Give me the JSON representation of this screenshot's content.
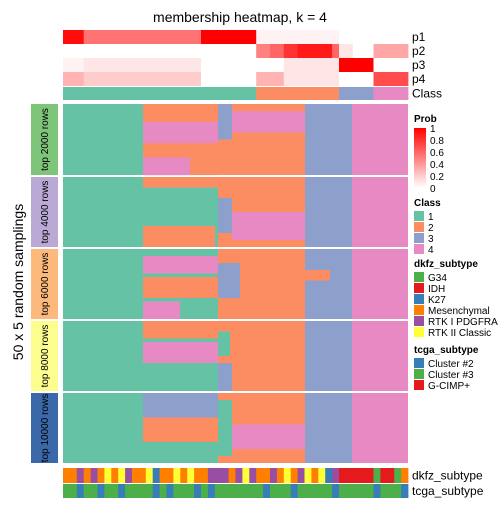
{
  "chart_data": {
    "type": "heatmap",
    "title": "membership heatmap, k = 4",
    "ylabel": "50 x 5 random samplings",
    "n_columns": 50,
    "top_tracks": [
      {
        "label": "p1",
        "values": [
          0.95,
          0.95,
          0.95,
          0.55,
          0.55,
          0.55,
          0.55,
          0.55,
          0.55,
          0.55,
          0.55,
          0.55,
          0.55,
          0.55,
          0.55,
          0.55,
          0.55,
          0.55,
          0.55,
          0.55,
          1.0,
          1.0,
          1.0,
          1.0,
          1.0,
          1.0,
          1.0,
          1.0,
          0.05,
          0.05,
          0.05,
          0.05,
          0.05,
          0.05,
          0.05,
          0.05,
          0.05,
          0.05,
          0.05,
          0.05,
          0,
          0,
          0,
          0,
          0,
          0,
          0,
          0,
          0,
          0
        ]
      },
      {
        "label": "p2",
        "values": [
          0,
          0,
          0,
          0,
          0,
          0,
          0,
          0,
          0,
          0,
          0,
          0,
          0,
          0,
          0,
          0,
          0,
          0,
          0,
          0,
          0,
          0,
          0,
          0,
          0,
          0,
          0,
          0,
          0.5,
          0.5,
          0.6,
          0.6,
          0.8,
          0.8,
          0.9,
          0.9,
          0.9,
          0.9,
          0.9,
          0.6,
          0.1,
          0.1,
          0,
          0,
          0,
          0.35,
          0.35,
          0.35,
          0.35,
          0.35
        ]
      },
      {
        "label": "p3",
        "values": [
          0.05,
          0.05,
          0.05,
          0.1,
          0.1,
          0.1,
          0.1,
          0.1,
          0.1,
          0.1,
          0.1,
          0.1,
          0.1,
          0.1,
          0.1,
          0.1,
          0.1,
          0.1,
          0.1,
          0.1,
          0,
          0,
          0,
          0,
          0,
          0,
          0,
          0,
          0,
          0,
          0,
          0,
          0.1,
          0.1,
          0.1,
          0.1,
          0.1,
          0.1,
          0.1,
          0.1,
          1.0,
          1.0,
          1.0,
          1.0,
          1.0,
          0,
          0,
          0,
          0,
          0
        ]
      },
      {
        "label": "p4",
        "values": [
          0.3,
          0.3,
          0.3,
          0.2,
          0.2,
          0.2,
          0.2,
          0.2,
          0.2,
          0.2,
          0.2,
          0.2,
          0.2,
          0.2,
          0.2,
          0.2,
          0.2,
          0.2,
          0.2,
          0.2,
          0,
          0,
          0,
          0,
          0,
          0,
          0,
          0,
          0.3,
          0.3,
          0.3,
          0.3,
          0.1,
          0.1,
          0.1,
          0.1,
          0.1,
          0.1,
          0.1,
          0.1,
          0,
          0,
          0,
          0,
          0,
          0.7,
          0.7,
          0.7,
          0.7,
          0.7
        ]
      },
      {
        "label": "Class",
        "values": [
          1,
          1,
          1,
          1,
          1,
          1,
          1,
          1,
          1,
          1,
          1,
          1,
          1,
          1,
          1,
          1,
          1,
          1,
          1,
          1,
          1,
          1,
          1,
          1,
          1,
          1,
          1,
          1,
          2,
          2,
          2,
          2,
          2,
          2,
          2,
          2,
          2,
          2,
          2,
          2,
          3,
          3,
          3,
          3,
          3,
          4,
          4,
          4,
          4,
          4
        ]
      }
    ],
    "row_groups": [
      {
        "label": "top 2000 rows",
        "color": "#7ec479"
      },
      {
        "label": "top 4000 rows",
        "color": "#bba9d5"
      },
      {
        "label": "top 6000 rows",
        "color": "#fdb97b"
      },
      {
        "label": "top 8000 rows",
        "color": "#fdfd8f"
      },
      {
        "label": "top 10000 rows",
        "color": "#3a68a8"
      }
    ],
    "bottom_tracks": [
      {
        "label": "dkfz_subtype",
        "values": [
          "M",
          "M",
          "P",
          "M",
          "P",
          "M",
          "II",
          "M",
          "II",
          "P",
          "M",
          "M",
          "II",
          "K",
          "M",
          "M",
          "II",
          "M",
          "II",
          "M",
          "M",
          "P",
          "P",
          "P",
          "M",
          "P",
          "II",
          "P",
          "M",
          "M",
          "P",
          "M",
          "II",
          "M",
          "P",
          "II",
          "M",
          "II",
          "K",
          "P",
          "I",
          "I",
          "I",
          "I",
          "I",
          "G",
          "I",
          "I",
          "G",
          "M"
        ]
      },
      {
        "label": "tcga_subtype",
        "values": [
          "3",
          "3",
          "2",
          "3",
          "3",
          "2",
          "3",
          "3",
          "2",
          "3",
          "3",
          "3",
          "3",
          "2",
          "3",
          "2",
          "3",
          "3",
          "3",
          "2",
          "3",
          "2",
          "3",
          "3",
          "3",
          "3",
          "3",
          "3",
          "3",
          "2",
          "3",
          "3",
          "3",
          "2",
          "3",
          "3",
          "3",
          "3",
          "3",
          "2",
          "3",
          "3",
          "3",
          "3",
          "3",
          "2",
          "3",
          "3",
          "3",
          "2"
        ]
      }
    ],
    "legends": {
      "prob": {
        "title": "Prob",
        "ticks": [
          "1",
          "0.8",
          "0.6",
          "0.4",
          "0.2",
          "0"
        ],
        "colors": [
          "#ff0000",
          "#ffffff"
        ]
      },
      "class": {
        "title": "Class",
        "items": [
          {
            "label": "1",
            "color": "#66c2a5"
          },
          {
            "label": "2",
            "color": "#fc8d62"
          },
          {
            "label": "3",
            "color": "#8da0cb"
          },
          {
            "label": "4",
            "color": "#e78ac3"
          }
        ]
      },
      "dkfz": {
        "title": "dkfz_subtype",
        "items": [
          {
            "label": "G34",
            "color": "#4daf4a"
          },
          {
            "label": "IDH",
            "color": "#e41a1c"
          },
          {
            "label": "K27",
            "color": "#377eb8"
          },
          {
            "label": "Mesenchymal",
            "color": "#ff7f00"
          },
          {
            "label": "RTK I PDGFRA",
            "color": "#984ea3"
          },
          {
            "label": "RTK II Classic",
            "color": "#ffff33"
          }
        ]
      },
      "tcga": {
        "title": "tcga_subtype",
        "items": [
          {
            "label": "Cluster #2",
            "color": "#377eb8"
          },
          {
            "label": "Cluster #3",
            "color": "#4daf4a"
          },
          {
            "label": "G-CIMP+",
            "color": "#e41a1c"
          }
        ]
      }
    }
  }
}
